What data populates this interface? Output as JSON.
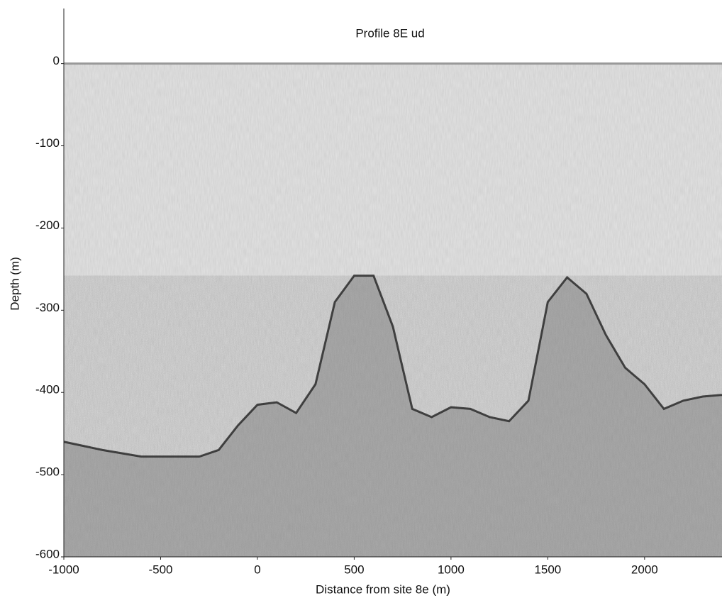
{
  "chart_data": {
    "type": "area",
    "title": "Profile 8E ud",
    "xlabel": "Distance from site 8e (m)",
    "ylabel": "Depth (m)",
    "x": [
      -1000,
      -800,
      -600,
      -300,
      -200,
      -100,
      0,
      100,
      200,
      300,
      400,
      500,
      600,
      700,
      800,
      900,
      1000,
      1100,
      1200,
      1300,
      1400,
      1500,
      1600,
      1700,
      1800,
      1900,
      2000,
      2100,
      2200,
      2300,
      2400
    ],
    "values": [
      -460,
      -470,
      -478,
      -478,
      -470,
      -440,
      -415,
      -412,
      -425,
      -390,
      -290,
      -258,
      -258,
      -320,
      -420,
      -430,
      -418,
      -420,
      -430,
      -435,
      -410,
      -290,
      -260,
      -280,
      -330,
      -370,
      -390,
      -420,
      -410,
      -405,
      -403
    ],
    "color": "#555555",
    "xlim": [
      -1000,
      2400
    ],
    "ylim": [
      -600,
      67
    ],
    "xticks": [
      -1000,
      -500,
      0,
      500,
      1000,
      1500,
      2000
    ],
    "yticks": [
      0,
      -100,
      -200,
      -300,
      -400,
      -500,
      -600
    ],
    "grid": false
  }
}
